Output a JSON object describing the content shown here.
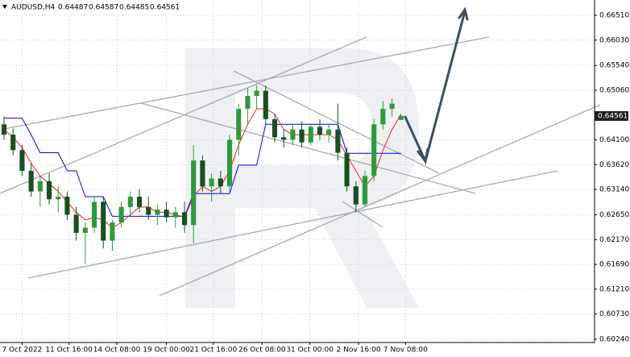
{
  "chart_data": {
    "type": "candlestick",
    "title": "AUDUSD,H4",
    "x": [
      0,
      1,
      2,
      3,
      4,
      5,
      6,
      7,
      8,
      9,
      10,
      11,
      12,
      13,
      14,
      15,
      16,
      17,
      18,
      19,
      20,
      21,
      22,
      23,
      24,
      25,
      26,
      27,
      28,
      29,
      30,
      31,
      32,
      33,
      34,
      35,
      36,
      37,
      38,
      39,
      40,
      41,
      42,
      43,
      44
    ],
    "open": [
      0.644,
      0.642,
      0.639,
      0.635,
      0.631,
      0.633,
      0.6295,
      0.63,
      0.6265,
      0.623,
      0.624,
      0.629,
      0.6215,
      0.625,
      0.628,
      0.63,
      0.628,
      0.6265,
      0.6275,
      0.626,
      0.627,
      0.6245,
      0.637,
      0.632,
      0.6335,
      0.632,
      0.641,
      0.647,
      0.6495,
      0.6505,
      0.645,
      0.6415,
      0.641,
      0.643,
      0.6405,
      0.6435,
      0.642,
      0.643,
      0.6385,
      0.632,
      0.6285,
      0.634,
      0.644,
      0.647,
      0.64487
    ],
    "high": [
      0.6455,
      0.6432,
      0.64,
      0.6365,
      0.634,
      0.6345,
      0.632,
      0.631,
      0.628,
      0.625,
      0.63,
      0.63,
      0.6255,
      0.629,
      0.631,
      0.6315,
      0.63,
      0.6285,
      0.629,
      0.628,
      0.629,
      0.64,
      0.638,
      0.6345,
      0.635,
      0.642,
      0.648,
      0.651,
      0.6515,
      0.6515,
      0.646,
      0.643,
      0.644,
      0.6445,
      0.644,
      0.645,
      0.644,
      0.648,
      0.6395,
      0.633,
      0.635,
      0.645,
      0.6485,
      0.649,
      0.64587
    ],
    "low": [
      0.641,
      0.638,
      0.634,
      0.63,
      0.628,
      0.6285,
      0.627,
      0.6255,
      0.6215,
      0.617,
      0.623,
      0.62,
      0.6195,
      0.624,
      0.626,
      0.627,
      0.6255,
      0.6245,
      0.625,
      0.624,
      0.623,
      0.621,
      0.631,
      0.629,
      0.6305,
      0.631,
      0.638,
      0.644,
      0.647,
      0.644,
      0.6405,
      0.6395,
      0.64,
      0.6395,
      0.64,
      0.641,
      0.6405,
      0.637,
      0.631,
      0.627,
      0.628,
      0.633,
      0.643,
      0.6455,
      0.64485
    ],
    "close": [
      0.642,
      0.639,
      0.635,
      0.631,
      0.633,
      0.6295,
      0.63,
      0.6265,
      0.623,
      0.624,
      0.629,
      0.6215,
      0.625,
      0.628,
      0.63,
      0.628,
      0.6265,
      0.6275,
      0.626,
      0.627,
      0.6245,
      0.637,
      0.632,
      0.6335,
      0.632,
      0.641,
      0.647,
      0.6495,
      0.6505,
      0.645,
      0.6415,
      0.641,
      0.643,
      0.6405,
      0.6435,
      0.642,
      0.643,
      0.6385,
      0.632,
      0.6285,
      0.634,
      0.644,
      0.647,
      0.648,
      0.64561
    ],
    "up_color": "#2f9a3c",
    "down_color": "#1b4f22",
    "overlays": [
      {
        "color": "#0000ff",
        "values": [
          0.6452,
          0.6452,
          0.6452,
          0.642,
          0.6385,
          0.6385,
          0.6385,
          0.635,
          0.635,
          0.63,
          0.63,
          0.63,
          0.6262,
          0.6262,
          0.6262,
          0.6262,
          0.6262,
          0.6262,
          0.6262,
          0.6262,
          0.6262,
          0.6306,
          0.6306,
          0.6306,
          0.6306,
          0.6306,
          0.6361,
          0.6361,
          0.6361,
          0.644,
          0.644,
          0.644,
          0.644,
          0.644,
          0.644,
          0.644,
          0.644,
          0.644,
          0.6384,
          0.6384,
          0.6384,
          0.6384,
          0.6384,
          0.6384,
          0.6384
        ]
      },
      {
        "color": "#e8231c",
        "values": [
          0.643,
          0.6415,
          0.6395,
          0.6365,
          0.634,
          0.6325,
          0.631,
          0.629,
          0.627,
          0.6255,
          0.626,
          0.6255,
          0.624,
          0.625,
          0.6265,
          0.628,
          0.628,
          0.627,
          0.627,
          0.6265,
          0.626,
          0.63,
          0.632,
          0.631,
          0.632,
          0.635,
          0.64,
          0.644,
          0.647,
          0.647,
          0.646,
          0.643,
          0.642,
          0.642,
          0.642,
          0.642,
          0.642,
          0.641,
          0.638,
          0.635,
          0.632,
          0.634,
          0.639,
          0.643,
          0.646
        ]
      }
    ],
    "xlim": [
      -0.45,
      65.45
    ],
    "ylim": [
      0.60178,
      0.66806
    ],
    "xticks": [
      {
        "value": 2,
        "label": "7 Oct 2022"
      },
      {
        "value": 7.2,
        "label": "11 Oct 16:00"
      },
      {
        "value": 12.5,
        "label": "14 Oct 08:00"
      },
      {
        "value": 18,
        "label": "19 Oct 00:00"
      },
      {
        "value": 23.2,
        "label": "21 Oct 16:00"
      },
      {
        "value": 28.6,
        "label": "26 Oct 08:00"
      },
      {
        "value": 33.9,
        "label": "31 Oct 00:00"
      },
      {
        "value": 39.3,
        "label": "2 Nov 16:00"
      },
      {
        "value": 44.5,
        "label": "7 Nov 08:00"
      }
    ],
    "yticks": [
      {
        "value": 0.6651,
        "label": "0.66510"
      },
      {
        "value": 0.6603,
        "label": "0.66030"
      },
      {
        "value": 0.6554,
        "label": "0.65540"
      },
      {
        "value": 0.6506,
        "label": "0.65060"
      },
      {
        "value": 0.641,
        "label": "0.64100"
      },
      {
        "value": 0.6362,
        "label": "0.63620"
      },
      {
        "value": 0.6314,
        "label": "0.63140"
      },
      {
        "value": 0.6265,
        "label": "0.62650"
      },
      {
        "value": 0.6217,
        "label": "0.62170"
      },
      {
        "value": 0.6169,
        "label": "0.61690"
      },
      {
        "value": 0.6121,
        "label": "0.61210"
      },
      {
        "value": 0.6073,
        "label": "0.60730"
      },
      {
        "value": 0.6024,
        "label": "0.60240"
      }
    ],
    "grid": true
  }
}
